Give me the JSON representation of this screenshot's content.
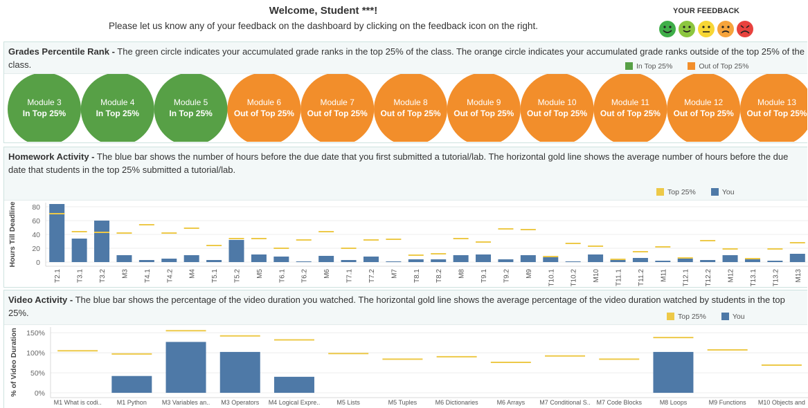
{
  "header": {
    "title": "Welcome, Student ***!",
    "subtitle": "Please let us know any of your feedback on the dashboard by clicking on the feedback icon on the right.",
    "feedback_label": "YOUR FEEDBACK"
  },
  "grades": {
    "title": "Grades Percentile Rank -",
    "description": "The green circle indicates your accumulated grade ranks in the top 25% of the class. The orange circle indicates your accumulated grade ranks outside of the top 25% of the class.",
    "legend": [
      {
        "name": "In Top 25%",
        "color": "#57a046"
      },
      {
        "name": "Out of Top 25%",
        "color": "#f28e2b"
      }
    ],
    "modules": [
      {
        "name": "Module 3",
        "status": "In Top 25%"
      },
      {
        "name": "Module 4",
        "status": "In Top 25%"
      },
      {
        "name": "Module 5",
        "status": "In Top 25%"
      },
      {
        "name": "Module 6",
        "status": "Out of Top 25%"
      },
      {
        "name": "Module 7",
        "status": "Out of Top 25%"
      },
      {
        "name": "Module 8",
        "status": "Out of Top 25%"
      },
      {
        "name": "Module 9",
        "status": "Out of Top 25%"
      },
      {
        "name": "Module 10",
        "status": "Out of Top 25%"
      },
      {
        "name": "Module 11",
        "status": "Out of Top 25%"
      },
      {
        "name": "Module 12",
        "status": "Out of Top 25%"
      },
      {
        "name": "Module 13",
        "status": "Out of Top 25%"
      }
    ]
  },
  "chart_data": [
    {
      "type": "bar",
      "title": "Homework Activity -",
      "description": "The blue bar shows the number of hours before the due date that you first submitted a tutorial/lab. The horizontal gold line shows the average number of hours before the due date that students in the top 25% submitted a tutorial/lab.",
      "y_label": "Hours Till Deadline",
      "categories": [
        "T2.1",
        "T3.1",
        "T3.2",
        "M3",
        "T4.1",
        "T4.2",
        "M4",
        "T5.1",
        "T5.2",
        "M5",
        "T6.1",
        "T6.2",
        "M6",
        "T7.1",
        "T7.2",
        "M7",
        "T8.1",
        "T8.2",
        "M8",
        "T9.1",
        "T9.2",
        "M9",
        "T10.1",
        "T10.2",
        "M10",
        "T11.1",
        "T11.2",
        "M11",
        "T12.1",
        "T12.2",
        "M12",
        "T13.1",
        "T13.2",
        "M13"
      ],
      "series": [
        {
          "name": "Top 25%",
          "color": "#edc948",
          "style": "line",
          "values": [
            70,
            44,
            43,
            42,
            54,
            42,
            49,
            24,
            34,
            34,
            20,
            32,
            44,
            20,
            32,
            33,
            10,
            12,
            34,
            29,
            48,
            47,
            8,
            27,
            23,
            4,
            15,
            22,
            6,
            31,
            19,
            5,
            19,
            28
          ]
        },
        {
          "name": "You",
          "color": "#4e79a7",
          "style": "bar",
          "values": [
            84,
            34,
            60,
            10,
            3,
            5,
            10,
            3,
            32,
            11,
            8,
            1,
            9,
            3,
            8,
            1,
            4,
            4,
            10,
            11,
            4,
            10,
            7,
            1,
            11,
            3,
            6,
            2,
            5,
            3,
            10,
            4,
            2,
            12
          ]
        }
      ],
      "ylim": [
        -6,
        86
      ],
      "yticks": [
        0,
        20,
        40,
        60,
        80
      ],
      "grid": true
    },
    {
      "type": "bar",
      "title": "Video Activity -",
      "description": "The blue bar shows the percentage of the video duration you watched. The horizontal gold line shows the average percentage of the video duration watched by students in the top 25%.",
      "y_label": "% of Video Duration",
      "categories": [
        "M1 What is codi..",
        "M1 Python",
        "M3 Variables an..",
        "M3 Operators",
        "M4 Logical Expre..",
        "M5 Lists",
        "M5 Tuples",
        "M6 Dictionaries",
        "M6 Arrays",
        "M7 Conditional S..",
        "M7 Code Blocks",
        "M8 Loops",
        "M9 Functions",
        "M10 Objects and"
      ],
      "series": [
        {
          "name": "Top 25%",
          "color": "#edc948",
          "style": "line",
          "values": [
            105,
            97,
            155,
            142,
            132,
            98,
            84,
            90,
            76,
            92,
            84,
            138,
            107,
            69
          ]
        },
        {
          "name": "You",
          "color": "#4e79a7",
          "style": "bar",
          "values": [
            null,
            42,
            127,
            102,
            40,
            null,
            null,
            null,
            null,
            null,
            null,
            102,
            null,
            null
          ]
        }
      ],
      "ylim": [
        -12,
        164
      ],
      "yticks": [
        {
          "value": 0,
          "label": "0%"
        },
        {
          "value": 50,
          "label": "50%"
        },
        {
          "value": 100,
          "label": "100%"
        },
        {
          "value": 150,
          "label": "150%"
        }
      ],
      "grid": true
    }
  ]
}
